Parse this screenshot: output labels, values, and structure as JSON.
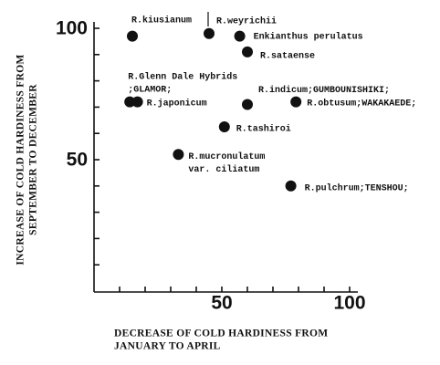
{
  "chart_data": {
    "type": "scatter",
    "x_label": [
      "DECREASE OF COLD HARDINESS FROM",
      "JANUARY TO APRIL"
    ],
    "y_label": [
      "INCREASE OF COLD HARDINESS FROM",
      "SEPTEMBER TO DECEMBER"
    ],
    "xlim": [
      0,
      100
    ],
    "ylim": [
      0,
      100
    ],
    "xticks": [
      {
        "value": 10,
        "label": null
      },
      {
        "value": 20,
        "label": null
      },
      {
        "value": 30,
        "label": null
      },
      {
        "value": 40,
        "label": null
      },
      50,
      {
        "value": 60,
        "label": null
      },
      {
        "value": 70,
        "label": null
      },
      {
        "value": 80,
        "label": null
      },
      {
        "value": 90,
        "label": null
      },
      100
    ],
    "yticks": [
      {
        "value": 10,
        "label": null
      },
      {
        "value": 20,
        "label": null
      },
      {
        "value": 30,
        "label": null
      },
      {
        "value": 40,
        "label": null
      },
      50,
      {
        "value": 60,
        "label": null
      },
      {
        "value": 70,
        "label": null
      },
      {
        "value": 80,
        "label": null
      },
      {
        "value": 90,
        "label": null
      },
      100
    ],
    "color": "#111111",
    "x": [
      15,
      45,
      57,
      60,
      14,
      17,
      60,
      79,
      51,
      33,
      77
    ],
    "y": [
      97,
      98,
      97,
      91,
      72,
      72,
      71,
      72,
      62.5,
      52,
      40
    ],
    "point_labels": [
      [
        "R.kiusianum"
      ],
      [
        "R.weyrichii"
      ],
      [
        "Enkianthus perulatus"
      ],
      [
        "R.sataense"
      ],
      [
        "R.Glenn Dale Hybrids",
        ";GLAMOR;"
      ],
      [
        "R.japonicum"
      ],
      [
        "R.indicum;GUMBOUNISHIKI;"
      ],
      [
        "R.obtusum;WAKAKAEDE;"
      ],
      [
        "R.tashiroi"
      ],
      [
        "R.mucronulatum",
        "var. ciliatum"
      ],
      [
        "R.pulchrum;TENSHOU;"
      ]
    ]
  }
}
